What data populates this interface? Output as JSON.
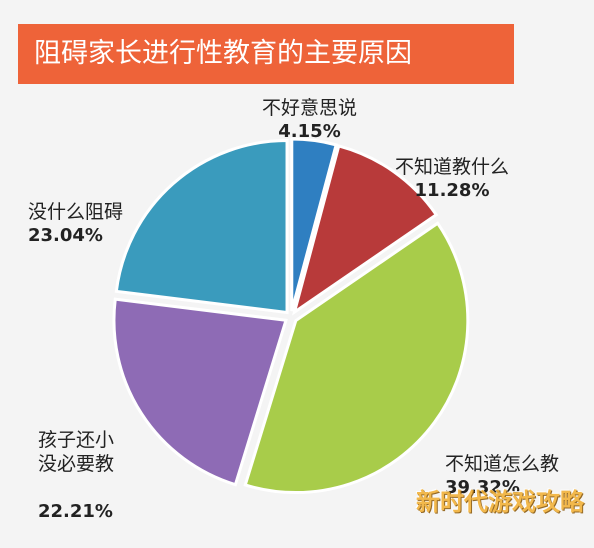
{
  "header": {
    "title": "阻碍家长进行性教育的主要原因"
  },
  "chart_data": {
    "type": "pie",
    "title": "阻碍家长进行性教育的主要原因",
    "slices": [
      {
        "label": "不好意思说",
        "value": 4.15,
        "value_label": "4.15%",
        "color": "#2f7fc1"
      },
      {
        "label": "不知道教什么",
        "value": 11.28,
        "value_label": "11.28%",
        "color": "#b83a3a"
      },
      {
        "label": "不知道怎么教",
        "value": 39.32,
        "value_label": "39.32%",
        "color": "#a8cc4a"
      },
      {
        "label": "孩子还小没必要教",
        "value": 22.21,
        "value_label": "22.21%",
        "color": "#8e6bb5"
      },
      {
        "label": "没什么阻碍",
        "value": 23.04,
        "value_label": "23.04%",
        "color": "#3a9bbd"
      }
    ]
  },
  "labels": [
    {
      "name": "不好意思说",
      "pct": "4.15%"
    },
    {
      "name": "不知道教什么",
      "pct": "11.28%"
    },
    {
      "name": "不知道怎么教",
      "pct": "39.32%"
    },
    {
      "name": "孩子还小\n没必要教",
      "pct": "22.21%"
    },
    {
      "name": "没什么阻碍",
      "pct": "23.04%"
    }
  ],
  "watermark": {
    "text": "新时代游戏攻略"
  }
}
